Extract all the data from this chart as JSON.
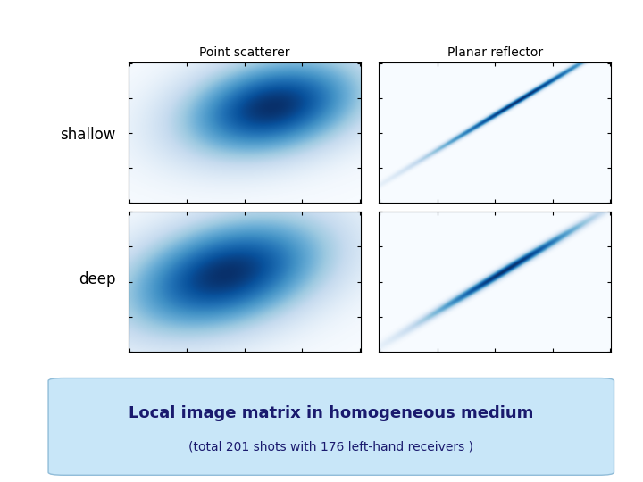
{
  "title_col1": "Point scatterer",
  "title_col2": "Planar reflector",
  "row_label1": "shallow",
  "row_label2": "deep",
  "footer_title": "Local image matrix in homogeneous medium",
  "footer_subtitle": "(total 201 shots with 176 left-hand receivers )",
  "footer_bg": "#c8e6f8",
  "background_color": "#ffffff",
  "cmap": "Blues",
  "grid_size": 200
}
